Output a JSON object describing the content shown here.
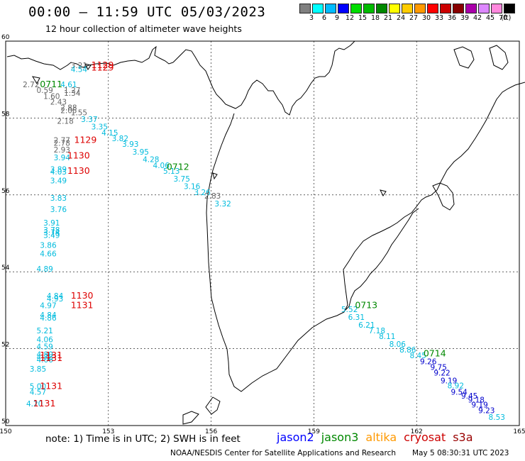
{
  "title": "00:00 – 11:59 UTC 05/03/2023",
  "subtitle": "12 hour collection of altimeter wave heights",
  "colors": {
    "jason2": "#0000ff",
    "jason3": "#008800",
    "altika": "#ff9900",
    "cryosat": "#cc0000",
    "s3a": "#990000",
    "time": "#dd0000",
    "time_green": "#008800",
    "grey": "#666666",
    "cyan": "#00bbdd",
    "blue": "#0000cc"
  },
  "legend": {
    "unit": "(ft)",
    "scale": [
      {
        "label": "3",
        "color": "#808080"
      },
      {
        "label": "6",
        "color": "#00ffff"
      },
      {
        "label": "9",
        "color": "#00bbff"
      },
      {
        "label": "12",
        "color": "#0000ff"
      },
      {
        "label": "15",
        "color": "#00dd00"
      },
      {
        "label": "18",
        "color": "#00bb00"
      },
      {
        "label": "21",
        "color": "#008800"
      },
      {
        "label": "24",
        "color": "#ffff00"
      },
      {
        "label": "27",
        "color": "#ffcc00"
      },
      {
        "label": "30",
        "color": "#ff9900"
      },
      {
        "label": "33",
        "color": "#ff0000"
      },
      {
        "label": "36",
        "color": "#cc0000"
      },
      {
        "label": "39",
        "color": "#880000"
      },
      {
        "label": "42",
        "color": "#aa00aa"
      },
      {
        "label": "45",
        "color": "#dd88ff"
      },
      {
        "label": "70",
        "color": "#ff88dd"
      },
      {
        "label": "",
        "color": "#000000"
      }
    ]
  },
  "axes": {
    "lon_ticks": [
      "150",
      "153",
      "156",
      "159",
      "162",
      "165"
    ],
    "lat_ticks": [
      "50",
      "52",
      "54",
      "56",
      "58",
      "60"
    ]
  },
  "wave_heights": [
    {
      "lon": 151.9,
      "lat": 59.3,
      "value": "3.21",
      "color": "grey"
    },
    {
      "lon": 151.9,
      "lat": 59.2,
      "value": "4.54",
      "color": "cyan"
    },
    {
      "lon": 150.5,
      "lat": 58.8,
      "value": "2.72",
      "color": "grey"
    },
    {
      "lon": 151.6,
      "lat": 58.8,
      "value": "4.61",
      "color": "cyan"
    },
    {
      "lon": 150.9,
      "lat": 58.65,
      "value": "0.59",
      "color": "grey"
    },
    {
      "lon": 151.7,
      "lat": 58.65,
      "value": "1.27",
      "color": "grey"
    },
    {
      "lon": 151.7,
      "lat": 58.58,
      "value": "1.34",
      "color": "grey"
    },
    {
      "lon": 151.1,
      "lat": 58.5,
      "value": "1.60",
      "color": "grey"
    },
    {
      "lon": 151.3,
      "lat": 58.35,
      "value": "2.43",
      "color": "grey"
    },
    {
      "lon": 151.6,
      "lat": 58.2,
      "value": "2.88",
      "color": "grey"
    },
    {
      "lon": 151.6,
      "lat": 58.13,
      "value": "2.05",
      "color": "grey"
    },
    {
      "lon": 151.9,
      "lat": 58.07,
      "value": "1.55",
      "color": "grey"
    },
    {
      "lon": 151.5,
      "lat": 57.85,
      "value": "2.18",
      "color": "grey"
    },
    {
      "lon": 152.2,
      "lat": 57.9,
      "value": "3.37",
      "color": "cyan"
    },
    {
      "lon": 152.5,
      "lat": 57.7,
      "value": "3.35",
      "color": "cyan"
    },
    {
      "lon": 152.8,
      "lat": 57.55,
      "value": "4.15",
      "color": "cyan"
    },
    {
      "lon": 153.1,
      "lat": 57.4,
      "value": "3.82",
      "color": "cyan"
    },
    {
      "lon": 153.4,
      "lat": 57.25,
      "value": "3.93",
      "color": "cyan"
    },
    {
      "lon": 153.7,
      "lat": 57.05,
      "value": "3.95",
      "color": "cyan"
    },
    {
      "lon": 154.0,
      "lat": 56.85,
      "value": "4.28",
      "color": "cyan"
    },
    {
      "lon": 154.3,
      "lat": 56.7,
      "value": "4.06",
      "color": "cyan"
    },
    {
      "lon": 154.6,
      "lat": 56.55,
      "value": "5.13",
      "color": "cyan"
    },
    {
      "lon": 154.9,
      "lat": 56.35,
      "value": "3.75",
      "color": "cyan"
    },
    {
      "lon": 155.2,
      "lat": 56.15,
      "value": "3.16",
      "color": "cyan"
    },
    {
      "lon": 155.5,
      "lat": 56.0,
      "value": "3.26",
      "color": "cyan"
    },
    {
      "lon": 155.8,
      "lat": 55.9,
      "value": "2.83",
      "color": "grey"
    },
    {
      "lon": 156.1,
      "lat": 55.7,
      "value": "3.32",
      "color": "cyan"
    },
    {
      "lon": 151.4,
      "lat": 57.35,
      "value": "2.77",
      "color": "grey"
    },
    {
      "lon": 151.4,
      "lat": 57.28,
      "value": "2.78",
      "color": "grey"
    },
    {
      "lon": 151.4,
      "lat": 57.1,
      "value": "2.93",
      "color": "grey"
    },
    {
      "lon": 151.4,
      "lat": 56.9,
      "value": "3.94",
      "color": "cyan"
    },
    {
      "lon": 151.3,
      "lat": 56.6,
      "value": "3.89",
      "color": "cyan"
    },
    {
      "lon": 151.3,
      "lat": 56.53,
      "value": "4.03",
      "color": "cyan"
    },
    {
      "lon": 151.3,
      "lat": 56.3,
      "value": "3.49",
      "color": "cyan"
    },
    {
      "lon": 151.3,
      "lat": 55.85,
      "value": "3.83",
      "color": "cyan"
    },
    {
      "lon": 151.3,
      "lat": 55.55,
      "value": "3.76",
      "color": "cyan"
    },
    {
      "lon": 151.1,
      "lat": 55.2,
      "value": "3.91",
      "color": "cyan"
    },
    {
      "lon": 151.1,
      "lat": 55.02,
      "value": "3.78",
      "color": "cyan"
    },
    {
      "lon": 151.1,
      "lat": 54.95,
      "value": "3.74",
      "color": "cyan"
    },
    {
      "lon": 151.1,
      "lat": 54.88,
      "value": "3.49",
      "color": "cyan"
    },
    {
      "lon": 151.0,
      "lat": 54.62,
      "value": "3.86",
      "color": "cyan"
    },
    {
      "lon": 151.0,
      "lat": 54.4,
      "value": "4.66",
      "color": "cyan"
    },
    {
      "lon": 150.9,
      "lat": 54.0,
      "value": "4.89",
      "color": "cyan"
    },
    {
      "lon": 151.2,
      "lat": 53.3,
      "value": "4.84",
      "color": "cyan"
    },
    {
      "lon": 151.2,
      "lat": 53.23,
      "value": "4.93",
      "color": "cyan"
    },
    {
      "lon": 151.0,
      "lat": 53.05,
      "value": "4.97",
      "color": "cyan"
    },
    {
      "lon": 151.0,
      "lat": 52.8,
      "value": "4.84",
      "color": "cyan"
    },
    {
      "lon": 151.0,
      "lat": 52.73,
      "value": "4.86",
      "color": "cyan"
    },
    {
      "lon": 150.9,
      "lat": 52.4,
      "value": "5.21",
      "color": "cyan"
    },
    {
      "lon": 150.9,
      "lat": 52.17,
      "value": "4.06",
      "color": "cyan"
    },
    {
      "lon": 150.9,
      "lat": 51.98,
      "value": "4.59",
      "color": "cyan"
    },
    {
      "lon": 150.9,
      "lat": 51.78,
      "value": "4.80",
      "color": "cyan"
    },
    {
      "lon": 150.9,
      "lat": 51.71,
      "value": "4.78",
      "color": "cyan"
    },
    {
      "lon": 150.9,
      "lat": 51.64,
      "value": "4.06",
      "color": "cyan"
    },
    {
      "lon": 150.7,
      "lat": 51.4,
      "value": "3.85",
      "color": "cyan"
    },
    {
      "lon": 150.7,
      "lat": 50.95,
      "value": "5.00",
      "color": "cyan"
    },
    {
      "lon": 150.7,
      "lat": 50.8,
      "value": "4.57",
      "color": "cyan"
    },
    {
      "lon": 150.6,
      "lat": 50.5,
      "value": "4.20",
      "color": "cyan"
    },
    {
      "lon": 159.8,
      "lat": 52.95,
      "value": "5.52",
      "color": "cyan"
    },
    {
      "lon": 160.0,
      "lat": 52.75,
      "value": "6.31",
      "color": "cyan"
    },
    {
      "lon": 160.3,
      "lat": 52.55,
      "value": "6.21",
      "color": "cyan"
    },
    {
      "lon": 160.6,
      "lat": 52.4,
      "value": "7.18",
      "color": "cyan"
    },
    {
      "lon": 160.9,
      "lat": 52.25,
      "value": "8.11",
      "color": "cyan"
    },
    {
      "lon": 161.2,
      "lat": 52.05,
      "value": "8.06",
      "color": "cyan"
    },
    {
      "lon": 161.5,
      "lat": 51.9,
      "value": "8.86",
      "color": "cyan"
    },
    {
      "lon": 161.8,
      "lat": 51.75,
      "value": "8.45",
      "color": "cyan"
    },
    {
      "lon": 162.1,
      "lat": 51.6,
      "value": "9.26",
      "color": "blue"
    },
    {
      "lon": 162.4,
      "lat": 51.45,
      "value": "9.75",
      "color": "blue"
    },
    {
      "lon": 162.5,
      "lat": 51.3,
      "value": "9.22",
      "color": "blue"
    },
    {
      "lon": 162.7,
      "lat": 51.1,
      "value": "9.19",
      "color": "blue"
    },
    {
      "lon": 162.9,
      "lat": 50.97,
      "value": "8.92",
      "color": "cyan"
    },
    {
      "lon": 163.0,
      "lat": 50.8,
      "value": "9.54",
      "color": "blue"
    },
    {
      "lon": 163.3,
      "lat": 50.7,
      "value": "9.45",
      "color": "blue"
    },
    {
      "lon": 163.5,
      "lat": 50.6,
      "value": "9.18",
      "color": "blue"
    },
    {
      "lon": 163.6,
      "lat": 50.47,
      "value": "9.19",
      "color": "blue"
    },
    {
      "lon": 163.8,
      "lat": 50.32,
      "value": "9.23",
      "color": "blue"
    },
    {
      "lon": 164.1,
      "lat": 50.15,
      "value": "8.53",
      "color": "cyan"
    }
  ],
  "times": [
    {
      "lon": 152.5,
      "lat": 59.3,
      "value": "1129",
      "color": "time"
    },
    {
      "lon": 152.5,
      "lat": 59.23,
      "value": "1129",
      "color": "time"
    },
    {
      "lon": 151.0,
      "lat": 58.8,
      "value": "0711",
      "color": "time_green"
    },
    {
      "lon": 152.0,
      "lat": 57.35,
      "value": "1129",
      "color": "time"
    },
    {
      "lon": 151.8,
      "lat": 56.95,
      "value": "1130",
      "color": "time"
    },
    {
      "lon": 151.8,
      "lat": 56.55,
      "value": "1130",
      "color": "time"
    },
    {
      "lon": 154.7,
      "lat": 56.65,
      "value": "0712",
      "color": "time_green"
    },
    {
      "lon": 151.9,
      "lat": 53.3,
      "value": "1130",
      "color": "time"
    },
    {
      "lon": 151.9,
      "lat": 53.05,
      "value": "1131",
      "color": "time"
    },
    {
      "lon": 151.0,
      "lat": 51.75,
      "value": "1131",
      "color": "time"
    },
    {
      "lon": 151.0,
      "lat": 51.68,
      "value": "1131",
      "color": "time"
    },
    {
      "lon": 151.0,
      "lat": 50.95,
      "value": "1131",
      "color": "time"
    },
    {
      "lon": 150.8,
      "lat": 50.5,
      "value": "1131",
      "color": "time"
    },
    {
      "lon": 160.2,
      "lat": 53.05,
      "value": "0713",
      "color": "time_green"
    },
    {
      "lon": 162.2,
      "lat": 51.8,
      "value": "0714",
      "color": "time_green"
    }
  ],
  "note": "note: 1) Time is in UTC; 2) SWH is in feet",
  "satellites": [
    {
      "name": "jason2",
      "color": "#0000ff"
    },
    {
      "name": "jason3",
      "color": "#008800"
    },
    {
      "name": "altika",
      "color": "#ff9900"
    },
    {
      "name": "cryosat",
      "color": "#cc0000"
    },
    {
      "name": "s3a",
      "color": "#990000"
    }
  ],
  "footer": "NOAA/NESDIS Center for Satellite Applications and Research",
  "footer_time": "May  5 08:30:31 UTC 2023"
}
